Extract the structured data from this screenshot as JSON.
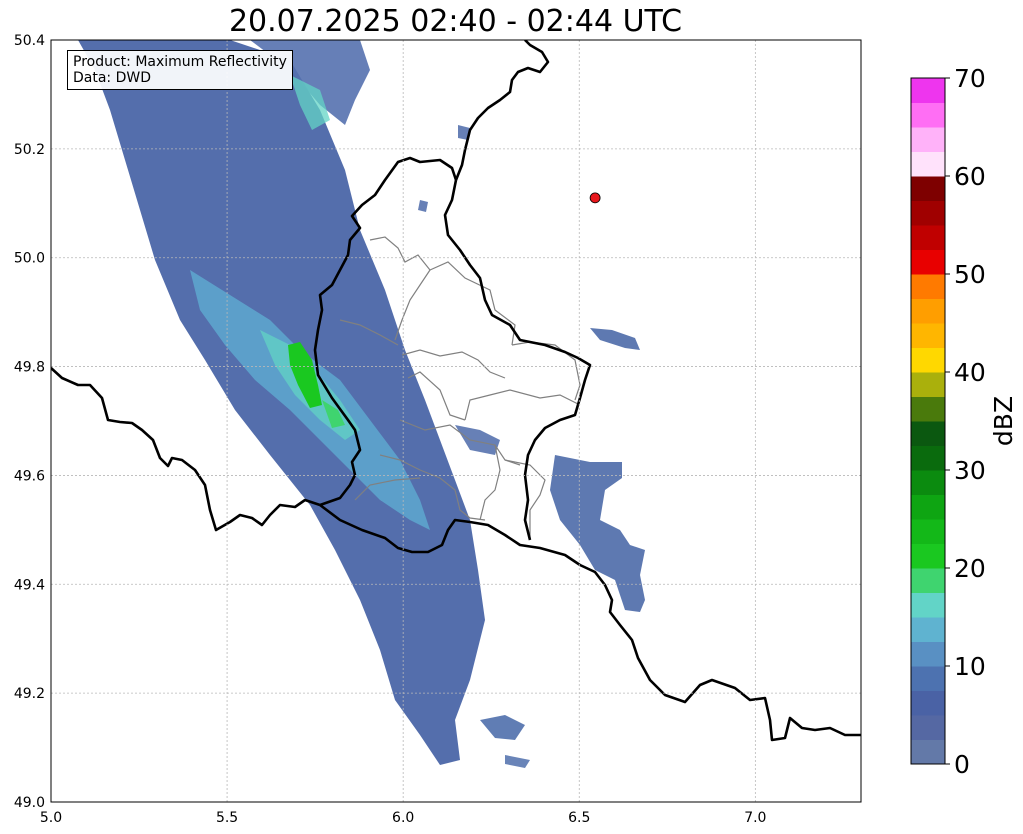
{
  "title": "20.07.2025 02:40 - 02:44 UTC",
  "info_box": {
    "product": "Product: Maximum Reflectivity",
    "data": "Data: DWD"
  },
  "axes": {
    "x_ticks": [
      "5.0",
      "5.5",
      "6.0",
      "6.5",
      "7.0"
    ],
    "x_tick_values": [
      5.0,
      5.5,
      6.0,
      6.5,
      7.0
    ],
    "y_ticks": [
      "49.0",
      "49.2",
      "49.4",
      "49.6",
      "49.8",
      "50.0",
      "50.2",
      "50.4"
    ],
    "y_tick_values": [
      49.0,
      49.2,
      49.4,
      49.6,
      49.8,
      50.0,
      50.2,
      50.4
    ],
    "xlim": [
      5.0,
      7.3
    ],
    "ylim": [
      49.0,
      50.4
    ],
    "grid": true
  },
  "colorbar": {
    "label": "dBZ",
    "ticks": [
      "0",
      "10",
      "20",
      "30",
      "40",
      "50",
      "60",
      "70"
    ],
    "range": [
      0,
      70
    ],
    "step": 2.5,
    "colors": [
      "#6379a8",
      "#5568a3",
      "#4a62a5",
      "#4d72b0",
      "#5990c3",
      "#5fb3d0",
      "#62d4c7",
      "#3fd46f",
      "#1ac820",
      "#13b818",
      "#0ea512",
      "#0b8b0f",
      "#0a6b0d",
      "#0b5810",
      "#4a7a0c",
      "#aab00c",
      "#ffd800",
      "#ffb600",
      "#ff9e00",
      "#ff7a00",
      "#e80000",
      "#c00000",
      "#a00000",
      "#7e0000",
      "#ffe2fb",
      "#ffb2f9",
      "#ff6ef4",
      "#ee35ee"
    ]
  },
  "marker": {
    "lon": 6.545,
    "lat": 50.11,
    "color": "#e8171c"
  },
  "colors": {
    "grid": "#b8b8b8",
    "border": "#000000",
    "region": "#808080"
  }
}
